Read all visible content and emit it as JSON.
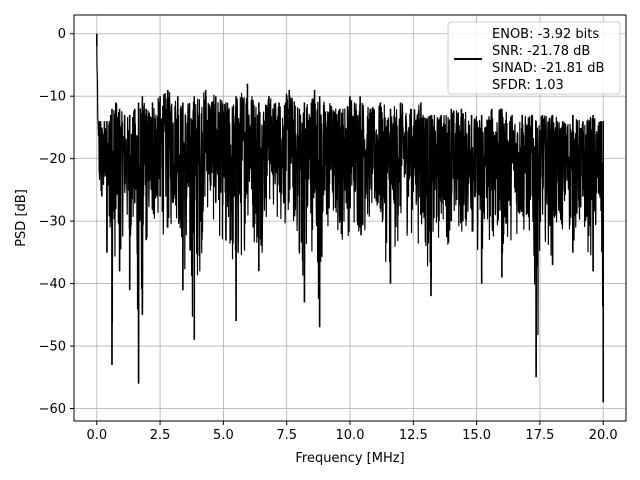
{
  "chart_data": {
    "type": "line",
    "xlabel": "Frequency [MHz]",
    "ylabel": "PSD [dB]",
    "xlim": [
      -0.9,
      20.9
    ],
    "ylim": [
      -62,
      3
    ],
    "x_ticks": [
      0.0,
      2.5,
      5.0,
      7.5,
      10.0,
      12.5,
      15.0,
      17.5,
      20.0
    ],
    "x_tick_labels": [
      "0.0",
      "2.5",
      "5.0",
      "7.5",
      "10.0",
      "12.5",
      "15.0",
      "17.5",
      "20.0"
    ],
    "y_ticks": [
      0,
      -10,
      -20,
      -30,
      -40,
      -50,
      -60
    ],
    "y_tick_labels": [
      "0",
      "−10",
      "−20",
      "−30",
      "−40",
      "−50",
      "−60"
    ],
    "grid": true,
    "legend_position": "top-right",
    "line_color": "#000000",
    "legend": {
      "lines": [
        "ENOB: -3.92 bits",
        "SNR: -21.78 dB",
        "SINAD: -21.81 dB",
        "SFDR: 1.03"
      ]
    },
    "series": [
      {
        "x": [
          0.0,
          0.05,
          0.1,
          0.15,
          0.2,
          0.3,
          0.4,
          0.5,
          0.55,
          0.6,
          0.75,
          0.9,
          1.1,
          1.3,
          1.5,
          1.65,
          1.8,
          1.95,
          2.2,
          2.5,
          2.8,
          3.2,
          3.4,
          3.85,
          4.3,
          4.7,
          5.1,
          5.5,
          5.95,
          6.4,
          6.8,
          7.2,
          7.6,
          8.0,
          8.2,
          8.6,
          8.8,
          9.2,
          9.6,
          10.0,
          10.4,
          10.8,
          11.2,
          11.6,
          12.0,
          12.4,
          12.8,
          13.2,
          13.6,
          14.0,
          14.4,
          14.8,
          15.2,
          15.6,
          16.0,
          16.4,
          16.8,
          17.2,
          17.35,
          17.6,
          18.0,
          18.4,
          18.8,
          19.2,
          19.6,
          19.9,
          20.0
        ],
        "y": [
          -2,
          -14,
          -22,
          -18,
          -26,
          -22,
          -35,
          -24,
          -30,
          -53,
          -28,
          -38,
          -24,
          -41,
          -27,
          -56,
          -45,
          -33,
          -28,
          -26,
          -31,
          -22,
          -41,
          -49,
          -19,
          -27,
          -33,
          -46,
          -25,
          -38,
          -16,
          -20,
          -13,
          -35,
          -43,
          -25,
          -47,
          -11,
          -30,
          -21,
          -31,
          -17,
          -28,
          -40,
          -23,
          -20,
          -29,
          -42,
          -19,
          -30,
          -26,
          -21,
          -40,
          -25,
          -39,
          -19,
          -28,
          -26,
          -55,
          -23,
          -37,
          -21,
          -35,
          -26,
          -38,
          -18,
          -59
        ],
        "envelope_top": [
          0,
          -14,
          -14,
          -14,
          -15,
          -14,
          -14,
          -14,
          -13,
          -12,
          -11,
          -12,
          -13,
          -13,
          -12,
          -11,
          -10,
          -12,
          -11,
          -10,
          -9,
          -10,
          -11,
          -10,
          -9,
          -10,
          -11,
          -10,
          -8,
          -11,
          -10,
          -11,
          -9,
          -12,
          -11,
          -9,
          -10,
          -11,
          -12,
          -10,
          -10,
          -12,
          -11,
          -12,
          -11,
          -12,
          -11,
          -13,
          -13,
          -12,
          -12,
          -13,
          -13,
          -12,
          -12,
          -13,
          -13,
          -13,
          -14,
          -13,
          -13,
          -14,
          -13,
          -14,
          -13,
          -14,
          -14
        ],
        "envelope_bottom": [
          -5,
          -26,
          -30,
          -28,
          -33,
          -28,
          -35,
          -31,
          -33,
          -53,
          -34,
          -38,
          -31,
          -41,
          -33,
          -56,
          -45,
          -36,
          -34,
          -32,
          -35,
          -31,
          -41,
          -49,
          -30,
          -33,
          -36,
          -46,
          -32,
          -38,
          -30,
          -32,
          -33,
          -36,
          -43,
          -33,
          -47,
          -33,
          -35,
          -33,
          -35,
          -32,
          -34,
          -40,
          -34,
          -33,
          -35,
          -42,
          -33,
          -35,
          -34,
          -33,
          -40,
          -34,
          -39,
          -33,
          -35,
          -34,
          -55,
          -33,
          -37,
          -33,
          -35,
          -34,
          -38,
          -33,
          -59
        ]
      }
    ]
  }
}
